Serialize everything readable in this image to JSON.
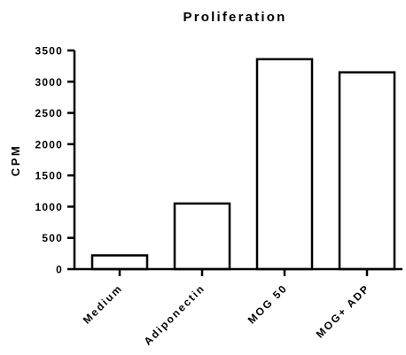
{
  "chart_data": {
    "type": "bar",
    "title": "Proliferation",
    "xlabel": "",
    "ylabel": "CPM",
    "ylim": [
      0,
      3500
    ],
    "yticks": [
      0,
      500,
      1000,
      1500,
      2000,
      2500,
      3000,
      3500
    ],
    "categories": [
      "Medium",
      "Adiponectin",
      "MOG 50",
      "MOG+ ADP"
    ],
    "values": [
      220,
      1050,
      3360,
      3150
    ],
    "grid": false,
    "legend": "none",
    "bar_fill": "#ffffff",
    "bar_stroke": "#000000"
  }
}
